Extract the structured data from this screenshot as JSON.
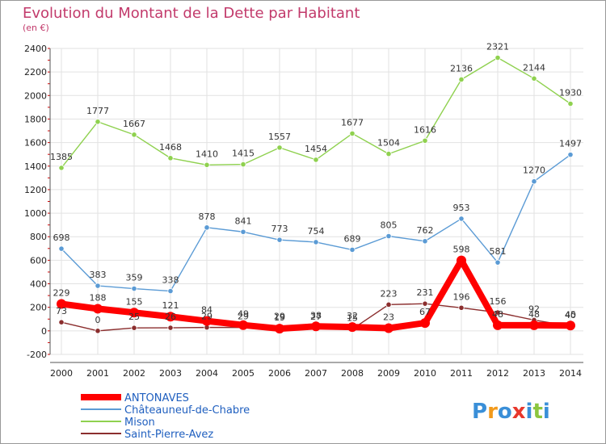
{
  "title": "Evolution du Montant de la Dette par Habitant",
  "unit_label": "(en €)",
  "logo_text": "Proxiti",
  "chart_data": {
    "type": "line",
    "x": [
      "2000",
      "2001",
      "2002",
      "2003",
      "2004",
      "2005",
      "2006",
      "2007",
      "2008",
      "2009",
      "2010",
      "2011",
      "2012",
      "2013",
      "2014"
    ],
    "yticks": [
      -200,
      0,
      200,
      400,
      600,
      800,
      1000,
      1200,
      1400,
      1600,
      1800,
      2000,
      2200,
      2400
    ],
    "ylim": [
      -200,
      2400
    ],
    "grid": true,
    "legend_position": "bottom-left",
    "series": [
      {
        "name": "ANTONAVES",
        "color": "#ff0000",
        "values": [
          229,
          188,
          155,
          121,
          84,
          49,
          19,
          38,
          32,
          23,
          67,
          598,
          48,
          48,
          45
        ],
        "labels": [
          "229",
          "188",
          "155",
          "121",
          "84",
          "49",
          "19",
          "38",
          "32",
          "23",
          "67",
          "598",
          "48",
          "48",
          "45"
        ]
      },
      {
        "name": "Châteauneuf-de-Chabre",
        "color": "#5b9bd5",
        "values": [
          698,
          383,
          359,
          338,
          878,
          841,
          773,
          754,
          689,
          805,
          762,
          953,
          581,
          1270,
          1497
        ],
        "labels": [
          "698",
          "383",
          "359",
          "338",
          "878",
          "841",
          "773",
          "754",
          "689",
          "805",
          "762",
          "953",
          "581",
          "1270",
          "1497"
        ]
      },
      {
        "name": "Mison",
        "color": "#8fd14f",
        "values": [
          1385,
          1777,
          1667,
          1468,
          1410,
          1415,
          1557,
          1454,
          1677,
          1504,
          1616,
          2136,
          2321,
          2144,
          1930
        ],
        "labels": [
          "1385",
          "1777",
          "1667",
          "1468",
          "1410",
          "1415",
          "1557",
          "1454",
          "1677",
          "1504",
          "1616",
          "2136",
          "2321",
          "2144",
          "1930"
        ]
      },
      {
        "name": "Saint-Pierre-Avez",
        "color": "#8b2e2e",
        "values": [
          73,
          0,
          25,
          26,
          29,
          29,
          29,
          27,
          15,
          223,
          231,
          196,
          156,
          92,
          40
        ],
        "labels": [
          "73",
          "0",
          "25",
          "26",
          "29",
          "29",
          "29",
          "27",
          "15",
          "223",
          "231",
          "196",
          "156",
          "92",
          "40"
        ]
      }
    ]
  }
}
